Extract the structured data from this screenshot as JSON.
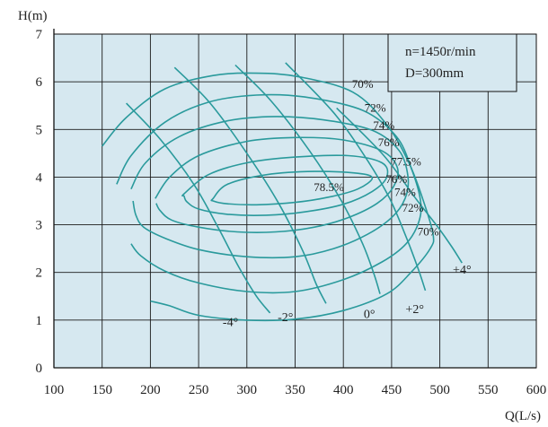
{
  "chart_data": {
    "type": "line",
    "title": "",
    "xlabel": "Q(L/s)",
    "ylabel": "H(m)",
    "xlim": [
      100,
      600
    ],
    "ylim": [
      0,
      7
    ],
    "x_ticks": [
      100,
      150,
      200,
      250,
      300,
      350,
      400,
      450,
      500,
      550,
      600
    ],
    "y_ticks": [
      0,
      1,
      2,
      3,
      4,
      5,
      6,
      7
    ],
    "grid": true,
    "colors": {
      "curve": "#2a9a9c",
      "plot_bg": "#d6e8f0",
      "grid": "#1a1a1a",
      "legend_bg": "#d6e8f0"
    },
    "legend": {
      "placement": "top-right",
      "lines": [
        "n=1450r/min",
        "D=300mm"
      ]
    },
    "efficiency_contours": [
      {
        "label": "70%",
        "label_at": [
          420,
          5.95
        ],
        "points": [
          [
            150,
            4.65
          ],
          [
            175,
            5.25
          ],
          [
            215,
            5.85
          ],
          [
            265,
            6.13
          ],
          [
            310,
            6.18
          ],
          [
            355,
            6.1
          ],
          [
            410,
            5.78
          ],
          [
            445,
            5.1
          ],
          [
            468,
            4.3
          ],
          [
            483,
            3.5
          ],
          [
            493,
            2.8
          ],
          [
            490,
            2.5
          ],
          [
            470,
            2.0
          ],
          [
            445,
            1.55
          ],
          [
            400,
            1.2
          ],
          [
            350,
            1.02
          ],
          [
            300,
            1.0
          ],
          [
            250,
            1.1
          ],
          [
            220,
            1.3
          ],
          [
            200,
            1.4
          ]
        ]
      },
      {
        "label": "72%",
        "label_at": [
          433,
          5.45
        ],
        "points": [
          [
            165,
            3.85
          ],
          [
            180,
            4.45
          ],
          [
            215,
            5.15
          ],
          [
            260,
            5.57
          ],
          [
            310,
            5.72
          ],
          [
            360,
            5.68
          ],
          [
            420,
            5.4
          ],
          [
            455,
            4.85
          ],
          [
            471,
            4.15
          ],
          [
            480,
            3.5
          ],
          [
            478,
            3.05
          ],
          [
            465,
            2.6
          ],
          [
            440,
            2.22
          ],
          [
            400,
            1.85
          ],
          [
            350,
            1.6
          ],
          [
            300,
            1.6
          ],
          [
            250,
            1.78
          ],
          [
            215,
            2.03
          ],
          [
            190,
            2.35
          ],
          [
            180,
            2.6
          ]
        ]
      },
      {
        "label": "74%",
        "label_at": [
          442,
          5.08
        ],
        "points": [
          [
            180,
            3.75
          ],
          [
            195,
            4.3
          ],
          [
            230,
            4.85
          ],
          [
            280,
            5.18
          ],
          [
            330,
            5.27
          ],
          [
            380,
            5.2
          ],
          [
            430,
            4.98
          ],
          [
            458,
            4.55
          ],
          [
            467,
            4.0
          ],
          [
            464,
            3.55
          ],
          [
            450,
            3.15
          ],
          [
            425,
            2.8
          ],
          [
            390,
            2.5
          ],
          [
            350,
            2.33
          ],
          [
            300,
            2.33
          ],
          [
            250,
            2.48
          ],
          [
            215,
            2.72
          ],
          [
            193,
            2.95
          ],
          [
            185,
            3.2
          ],
          [
            182,
            3.5
          ]
        ]
      },
      {
        "label": "76%",
        "label_at": [
          447,
          4.72
        ],
        "points": [
          [
            205,
            3.55
          ],
          [
            220,
            4.0
          ],
          [
            250,
            4.45
          ],
          [
            300,
            4.75
          ],
          [
            350,
            4.83
          ],
          [
            400,
            4.78
          ],
          [
            440,
            4.55
          ],
          [
            456,
            4.2
          ],
          [
            452,
            3.8
          ],
          [
            435,
            3.45
          ],
          [
            405,
            3.15
          ],
          [
            370,
            2.95
          ],
          [
            330,
            2.85
          ],
          [
            290,
            2.85
          ],
          [
            250,
            2.95
          ],
          [
            222,
            3.1
          ],
          [
            210,
            3.3
          ],
          [
            206,
            3.45
          ]
        ]
      },
      {
        "label": "77.5%",
        "label_at": [
          465,
          4.32
        ],
        "points": [
          [
            235,
            3.65
          ],
          [
            260,
            4.05
          ],
          [
            300,
            4.3
          ],
          [
            350,
            4.42
          ],
          [
            405,
            4.45
          ],
          [
            440,
            4.3
          ],
          [
            445,
            4.0
          ],
          [
            430,
            3.7
          ],
          [
            400,
            3.43
          ],
          [
            360,
            3.27
          ],
          [
            320,
            3.2
          ],
          [
            280,
            3.22
          ],
          [
            250,
            3.33
          ],
          [
            238,
            3.48
          ],
          [
            235,
            3.6
          ]
        ]
      },
      {
        "label": "78.5%",
        "label_at": [
          385,
          3.78
        ],
        "points": [
          [
            265,
            3.55
          ],
          [
            280,
            3.85
          ],
          [
            320,
            4.05
          ],
          [
            370,
            4.12
          ],
          [
            415,
            4.08
          ],
          [
            430,
            3.98
          ],
          [
            415,
            3.75
          ],
          [
            385,
            3.58
          ],
          [
            350,
            3.47
          ],
          [
            310,
            3.42
          ],
          [
            280,
            3.44
          ],
          [
            265,
            3.5
          ]
        ]
      }
    ],
    "right_efficiency_labels": [
      {
        "label": "76%",
        "at": [
          455,
          3.95
        ]
      },
      {
        "label": "74%",
        "at": [
          464,
          3.68
        ]
      },
      {
        "label": "72%",
        "at": [
          472,
          3.35
        ]
      },
      {
        "label": "70%",
        "at": [
          488,
          2.85
        ]
      }
    ],
    "blade_angle_lines": [
      {
        "label": "-4°",
        "label_at": [
          283,
          0.95
        ],
        "points": [
          [
            175,
            5.55
          ],
          [
            210,
            4.8
          ],
          [
            245,
            3.85
          ],
          [
            270,
            2.95
          ],
          [
            292,
            2.1
          ],
          [
            310,
            1.5
          ],
          [
            324,
            1.15
          ]
        ]
      },
      {
        "label": "-2°",
        "label_at": [
          340,
          1.05
        ],
        "points": [
          [
            225,
            6.3
          ],
          [
            262,
            5.55
          ],
          [
            300,
            4.5
          ],
          [
            333,
            3.45
          ],
          [
            358,
            2.45
          ],
          [
            372,
            1.75
          ],
          [
            382,
            1.35
          ]
        ]
      },
      {
        "label": "0°",
        "label_at": [
          427,
          1.12
        ],
        "points": [
          [
            288,
            6.35
          ],
          [
            325,
            5.6
          ],
          [
            365,
            4.55
          ],
          [
            398,
            3.5
          ],
          [
            420,
            2.6
          ],
          [
            432,
            1.95
          ],
          [
            438,
            1.55
          ]
        ]
      },
      {
        "label": "+2°",
        "label_at": [
          474,
          1.22
        ],
        "points": [
          [
            340,
            6.4
          ],
          [
            390,
            5.35
          ],
          [
            425,
            4.35
          ],
          [
            448,
            3.55
          ],
          [
            465,
            2.75
          ],
          [
            478,
            2.05
          ],
          [
            485,
            1.62
          ]
        ]
      },
      {
        "label": "+4°",
        "label_at": [
          523,
          2.05
        ],
        "points": [
          [
            393,
            5.45
          ],
          [
            442,
            4.45
          ],
          [
            475,
            3.55
          ],
          [
            498,
            2.95
          ],
          [
            512,
            2.55
          ],
          [
            523,
            2.2
          ]
        ]
      }
    ]
  }
}
